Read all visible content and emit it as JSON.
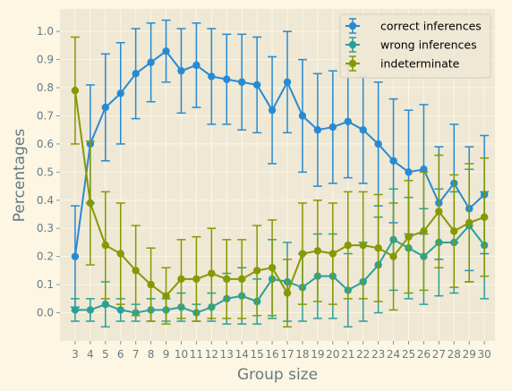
{
  "chart_data": {
    "type": "line",
    "title": "",
    "xlabel": "Group size",
    "ylabel": "Percentages",
    "x": [
      3,
      4,
      5,
      6,
      7,
      8,
      9,
      10,
      11,
      12,
      13,
      14,
      15,
      16,
      17,
      18,
      19,
      20,
      21,
      22,
      23,
      24,
      25,
      26,
      27,
      28,
      29,
      30
    ],
    "ylim": [
      -0.1,
      1.08
    ],
    "yticks": [
      0.0,
      0.1,
      0.2,
      0.3,
      0.4,
      0.5,
      0.6,
      0.7,
      0.8,
      0.9,
      1.0
    ],
    "grid": true,
    "legend_position": "top-right",
    "series": [
      {
        "name": "correct inferences",
        "color": "#268bd2",
        "values": [
          0.2,
          0.6,
          0.73,
          0.78,
          0.85,
          0.89,
          0.93,
          0.86,
          0.88,
          0.84,
          0.83,
          0.82,
          0.81,
          0.72,
          0.82,
          0.7,
          0.65,
          0.66,
          0.68,
          0.65,
          0.6,
          0.54,
          0.5,
          0.51,
          0.39,
          0.46,
          0.37,
          0.42
        ],
        "errors": [
          0.18,
          0.21,
          0.19,
          0.18,
          0.16,
          0.14,
          0.11,
          0.15,
          0.15,
          0.17,
          0.16,
          0.17,
          0.17,
          0.19,
          0.18,
          0.2,
          0.2,
          0.2,
          0.2,
          0.19,
          0.22,
          0.22,
          0.22,
          0.23,
          0.2,
          0.21,
          0.22,
          0.21
        ]
      },
      {
        "name": "wrong inferences",
        "color": "#2aa198",
        "values": [
          0.01,
          0.01,
          0.03,
          0.01,
          0.0,
          0.01,
          0.01,
          0.02,
          0.0,
          0.02,
          0.05,
          0.06,
          0.04,
          0.12,
          0.11,
          0.09,
          0.13,
          0.13,
          0.08,
          0.11,
          0.17,
          0.26,
          0.23,
          0.2,
          0.25,
          0.25,
          0.31,
          0.24
        ],
        "errors": [
          0.04,
          0.04,
          0.08,
          0.04,
          0.03,
          0.04,
          0.04,
          0.05,
          0.03,
          0.05,
          0.09,
          0.1,
          0.08,
          0.14,
          0.14,
          0.12,
          0.15,
          0.15,
          0.13,
          0.14,
          0.17,
          0.18,
          0.18,
          0.17,
          0.19,
          0.18,
          0.2,
          0.19
        ]
      },
      {
        "name": "indeterminate",
        "color": "#859900",
        "values": [
          0.79,
          0.39,
          0.24,
          0.21,
          0.15,
          0.1,
          0.06,
          0.12,
          0.12,
          0.14,
          0.12,
          0.12,
          0.15,
          0.16,
          0.07,
          0.21,
          0.22,
          0.21,
          0.24,
          0.24,
          0.23,
          0.2,
          0.27,
          0.29,
          0.36,
          0.29,
          0.32,
          0.34
        ],
        "errors": [
          0.19,
          0.22,
          0.19,
          0.18,
          0.16,
          0.13,
          0.1,
          0.14,
          0.15,
          0.16,
          0.14,
          0.14,
          0.16,
          0.17,
          0.12,
          0.18,
          0.18,
          0.18,
          0.19,
          0.19,
          0.19,
          0.19,
          0.2,
          0.21,
          0.2,
          0.2,
          0.21,
          0.21
        ]
      }
    ]
  }
}
